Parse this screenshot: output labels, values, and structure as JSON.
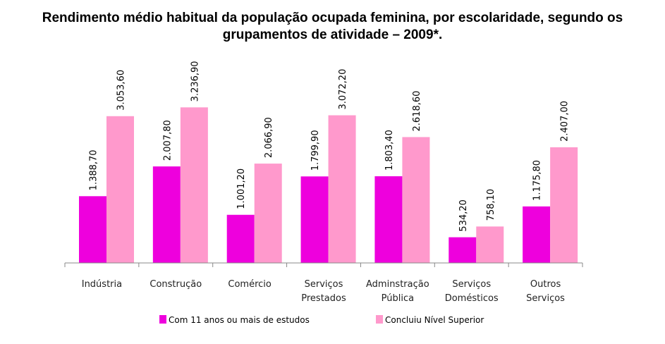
{
  "title_line1": "Rendimento médio habitual da população ocupada feminina, por escolaridade, segundo os",
  "title_line2": "grupamentos de atividade – 2009*.",
  "chart_data": {
    "type": "bar",
    "title": "Rendimento médio habitual da população ocupada feminina, por escolaridade, segundo os grupamentos de atividade – 2009*.",
    "categories": [
      [
        "Indústria"
      ],
      [
        "Construção"
      ],
      [
        "Comércio"
      ],
      [
        "Serviços",
        "Prestados"
      ],
      [
        "Adminstração",
        "Pública"
      ],
      [
        "Serviços",
        "Domésticos"
      ],
      [
        "Outros",
        "Serviços"
      ]
    ],
    "series": [
      {
        "name": "Com 11 anos ou mais de estudos",
        "color": "#ee00dd",
        "values": [
          1388.7,
          2007.8,
          1001.2,
          1799.9,
          1803.4,
          534.2,
          1175.8
        ],
        "labels": [
          "1.388,70",
          "2.007,80",
          "1.001,20",
          "1.799,90",
          "1.803,40",
          "534,20",
          "1.175,80"
        ]
      },
      {
        "name": "Concluiu Nível Superior",
        "color": "#ff99cc",
        "values": [
          3053.6,
          3236.9,
          2066.9,
          3072.2,
          2618.6,
          758.1,
          2407.0
        ],
        "labels": [
          "3.053,60",
          "3.236,90",
          "2.066,90",
          "3.072,20",
          "2.618,60",
          "758,10",
          "2.407,00"
        ]
      }
    ],
    "ylim": [
      0,
      3300
    ],
    "legend_position": "bottom",
    "grid": false
  }
}
